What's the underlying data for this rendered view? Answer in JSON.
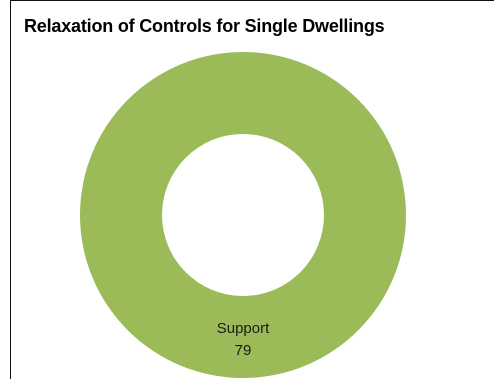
{
  "chart_data": {
    "type": "pie",
    "title": "Relaxation of Controls for Single Dwellings",
    "donut": true,
    "slices": [
      {
        "label": "Support",
        "value": 79,
        "color": "#9BBB59"
      }
    ]
  }
}
